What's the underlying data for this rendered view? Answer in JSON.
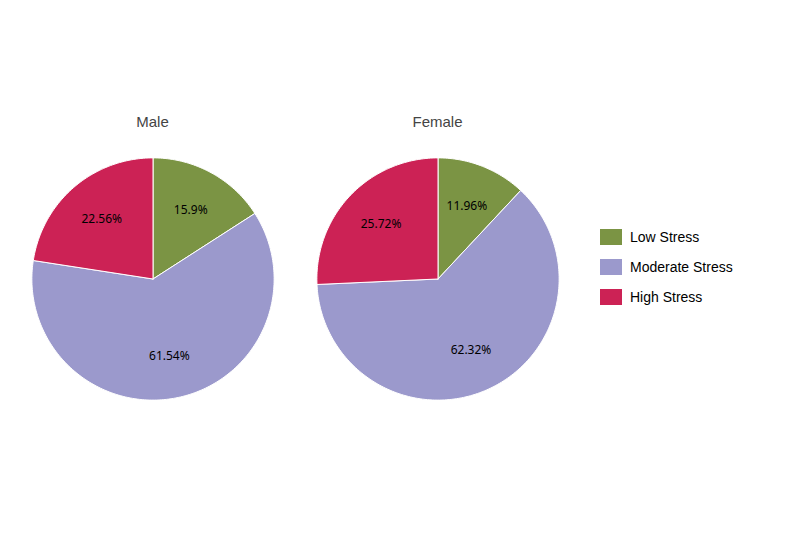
{
  "chart_data": {
    "type": "pie",
    "categories": [
      "Low Stress",
      "Moderate Stress",
      "High Stress"
    ],
    "colors": [
      "#7b9444",
      "#9b99cc",
      "#cc2255"
    ],
    "series": [
      {
        "name": "Male",
        "values": [
          15.9,
          61.54,
          22.56
        ],
        "value_labels": [
          "15.9%",
          "61.54%",
          "22.56%"
        ]
      },
      {
        "name": "Female",
        "values": [
          11.96,
          62.32,
          25.72
        ],
        "value_labels": [
          "11.96%",
          "62.32%",
          "25.72%"
        ]
      }
    ],
    "data_labels": true,
    "legend": "right"
  }
}
